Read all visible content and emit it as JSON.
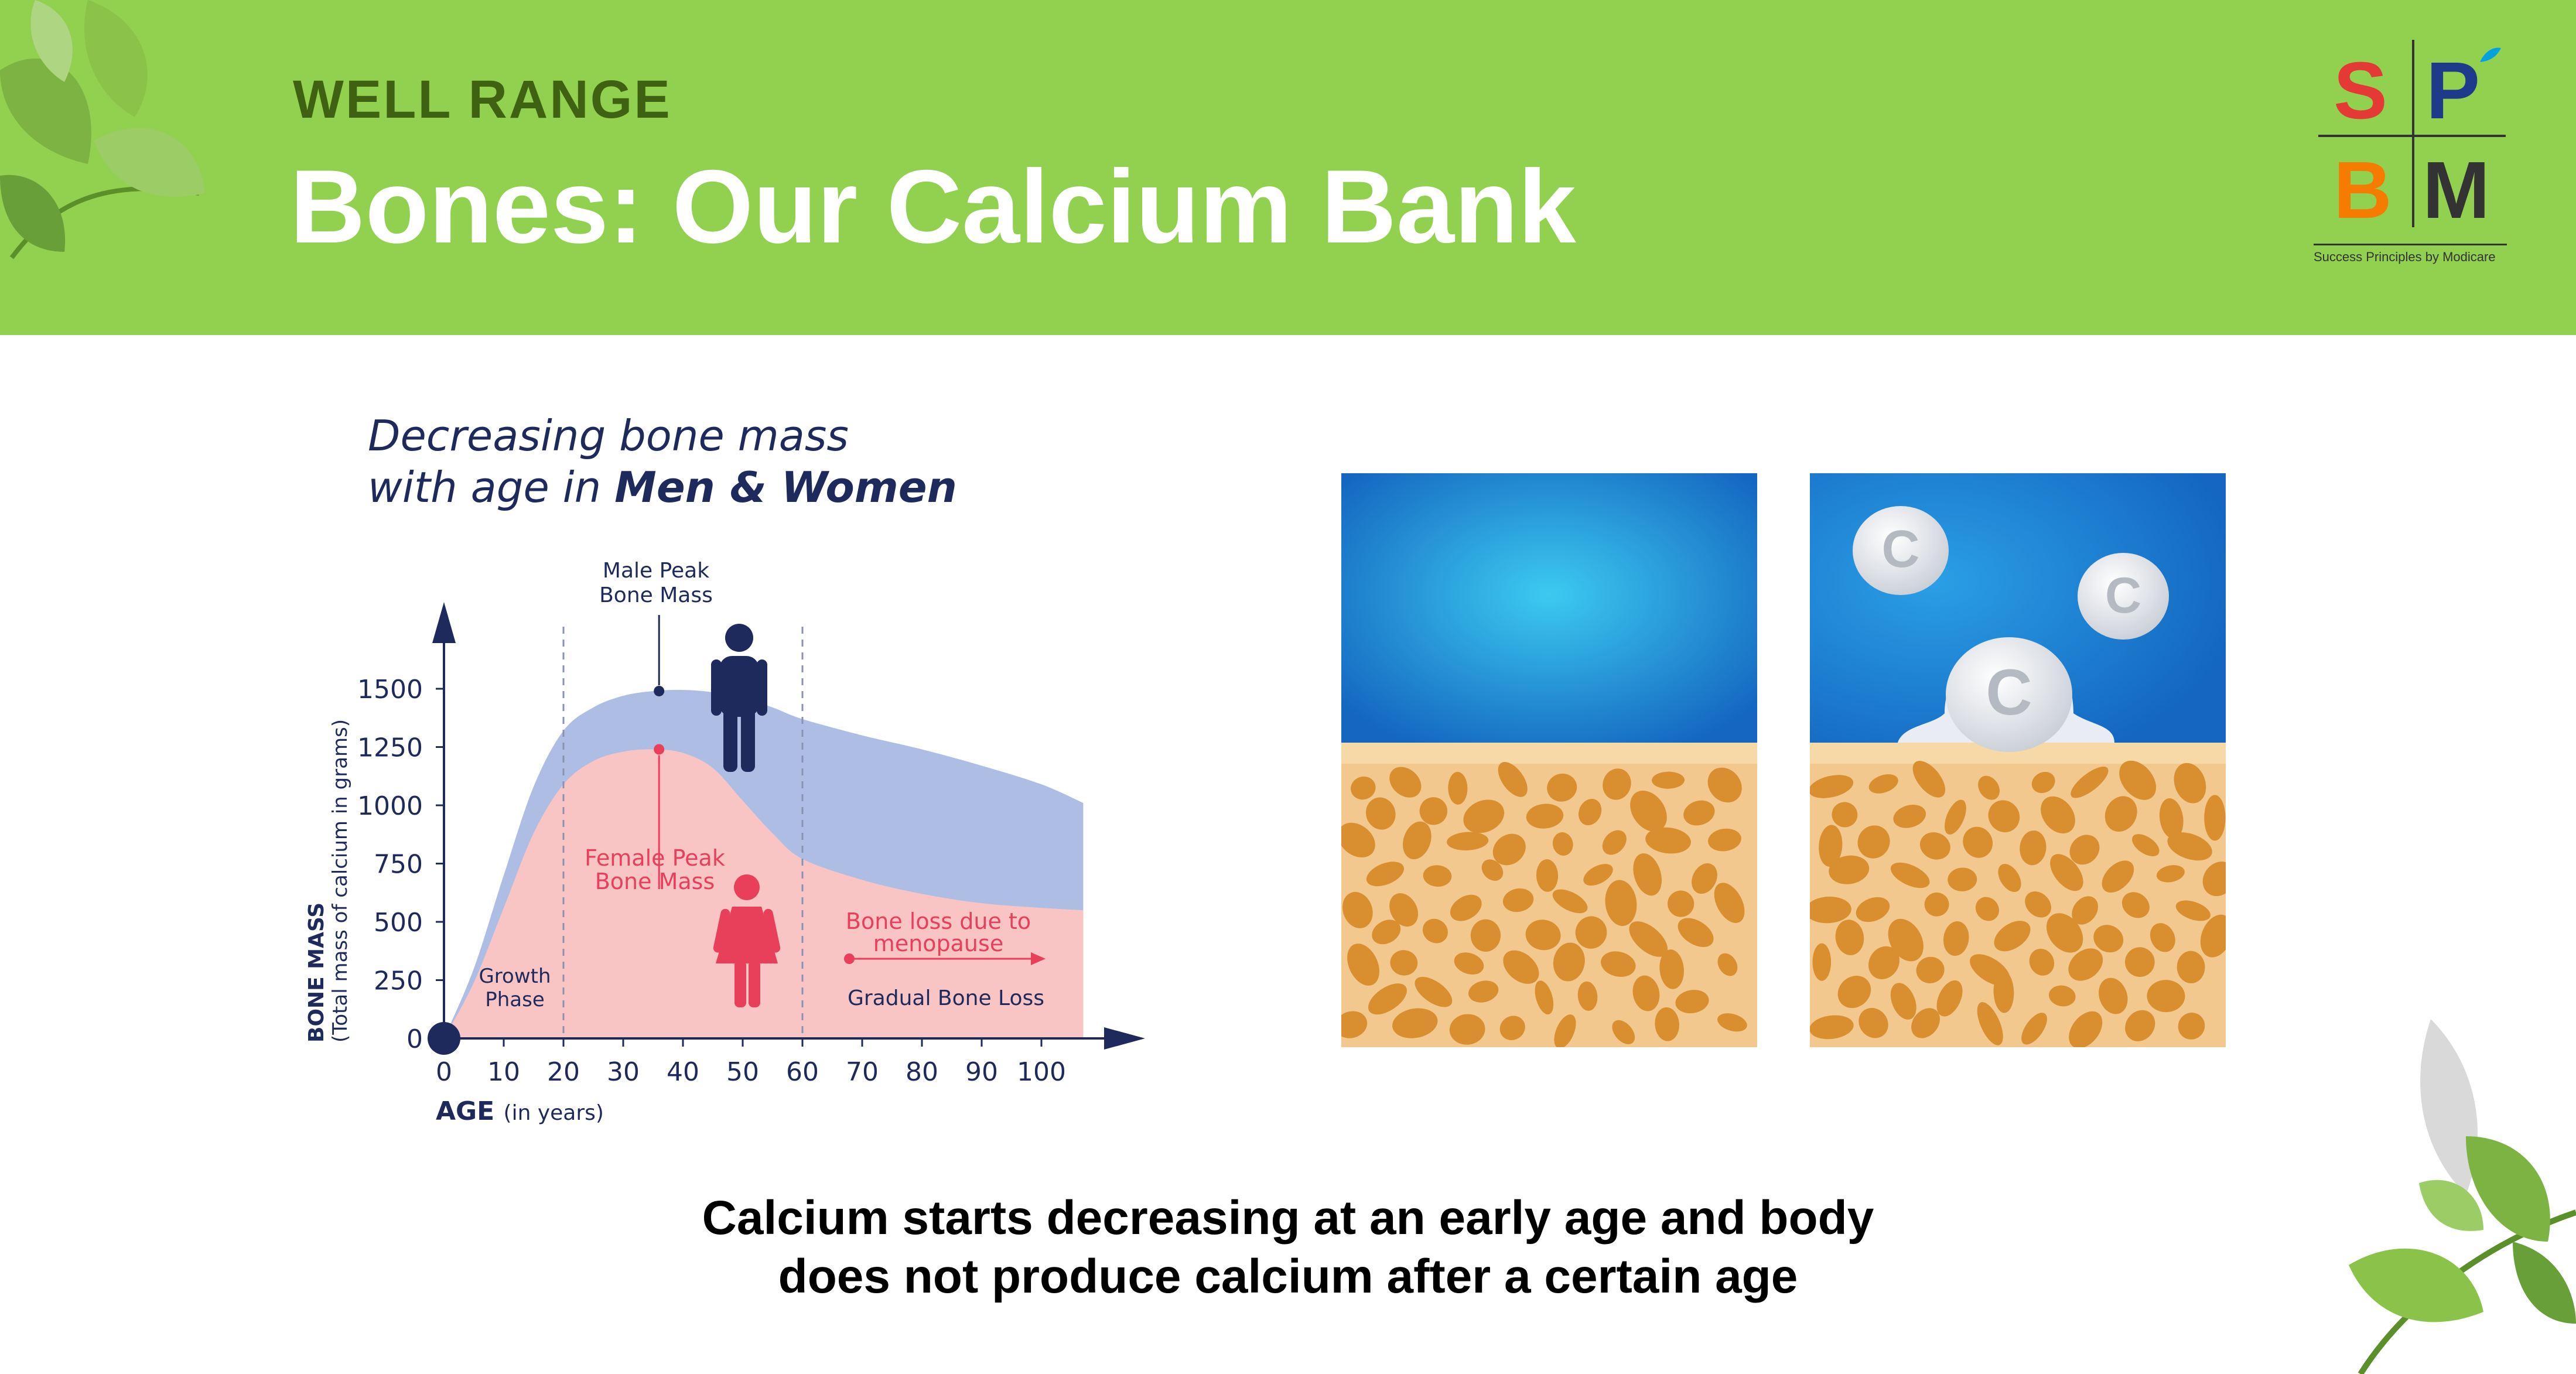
{
  "header": {
    "subtitle": "WELL RANGE",
    "title": "Bones: Our Calcium Bank",
    "background": "#92d050"
  },
  "logo": {
    "letters": [
      "S",
      "P",
      "B",
      "M"
    ],
    "tagline": "Success Principles by Modicare",
    "colors": {
      "S": "#e53935",
      "P": "#1e3a8a",
      "B": "#f57c00",
      "M": "#333333",
      "accent": "#00a3e0"
    }
  },
  "chart": {
    "title_line1": "Decreasing bone mass",
    "title_line2_prefix": "with age in ",
    "title_line2_bold": "Men & Women"
  },
  "chart_data": {
    "type": "area",
    "xlabel": "AGE",
    "xlabel_unit": "(in years)",
    "ylabel": "BONE MASS",
    "ylabel_unit": "(Total mass of calcium in grams)",
    "xlim": [
      0,
      110
    ],
    "ylim": [
      0,
      1650
    ],
    "x_ticks": [
      0,
      10,
      20,
      30,
      40,
      50,
      60,
      70,
      80,
      90,
      100
    ],
    "y_ticks": [
      0,
      250,
      500,
      750,
      1000,
      1250,
      1500
    ],
    "phase_dividers": [
      20,
      60
    ],
    "series": [
      {
        "name": "Men",
        "color": "#aebde3",
        "x": [
          0,
          5,
          10,
          15,
          20,
          25,
          30,
          35,
          40,
          45,
          50,
          55,
          60,
          70,
          80,
          90,
          100,
          107
        ],
        "y": [
          0,
          300,
          700,
          1080,
          1320,
          1420,
          1470,
          1490,
          1495,
          1485,
          1460,
          1420,
          1370,
          1300,
          1240,
          1170,
          1090,
          1010
        ]
      },
      {
        "name": "Women",
        "color": "#f9c4c4",
        "x": [
          0,
          5,
          10,
          15,
          20,
          25,
          30,
          35,
          40,
          45,
          50,
          55,
          60,
          70,
          80,
          90,
          100,
          107
        ],
        "y": [
          0,
          240,
          560,
          880,
          1090,
          1190,
          1230,
          1240,
          1225,
          1160,
          1020,
          880,
          770,
          680,
          620,
          580,
          560,
          550
        ]
      }
    ],
    "annotations": {
      "male_peak": {
        "text_line1": "Male Peak",
        "text_line2": "Bone Mass",
        "x": 36,
        "y": 1490
      },
      "female_peak": {
        "text_line1": "Female Peak",
        "text_line2": "Bone Mass",
        "x": 36,
        "y": 1240
      },
      "growth_phase": {
        "text_line1": "Growth",
        "text_line2": "Phase"
      },
      "menopause": {
        "text_line1": "Bone loss due to",
        "text_line2": "menopause"
      },
      "gradual_loss": {
        "text": "Gradual Bone Loss"
      }
    },
    "colors": {
      "axis": "#1f2a5c",
      "female_accent": "#e8405a",
      "male_figure": "#1f2a5c"
    }
  },
  "panels": {
    "left": {
      "icon": "bone-texture-healthy"
    },
    "right": {
      "icon": "bone-texture-calcium-tablets",
      "tablet_letter": "C"
    }
  },
  "caption": {
    "line1": "Calcium starts decreasing at an early age and body",
    "line2": "does not produce calcium after a certain age"
  }
}
